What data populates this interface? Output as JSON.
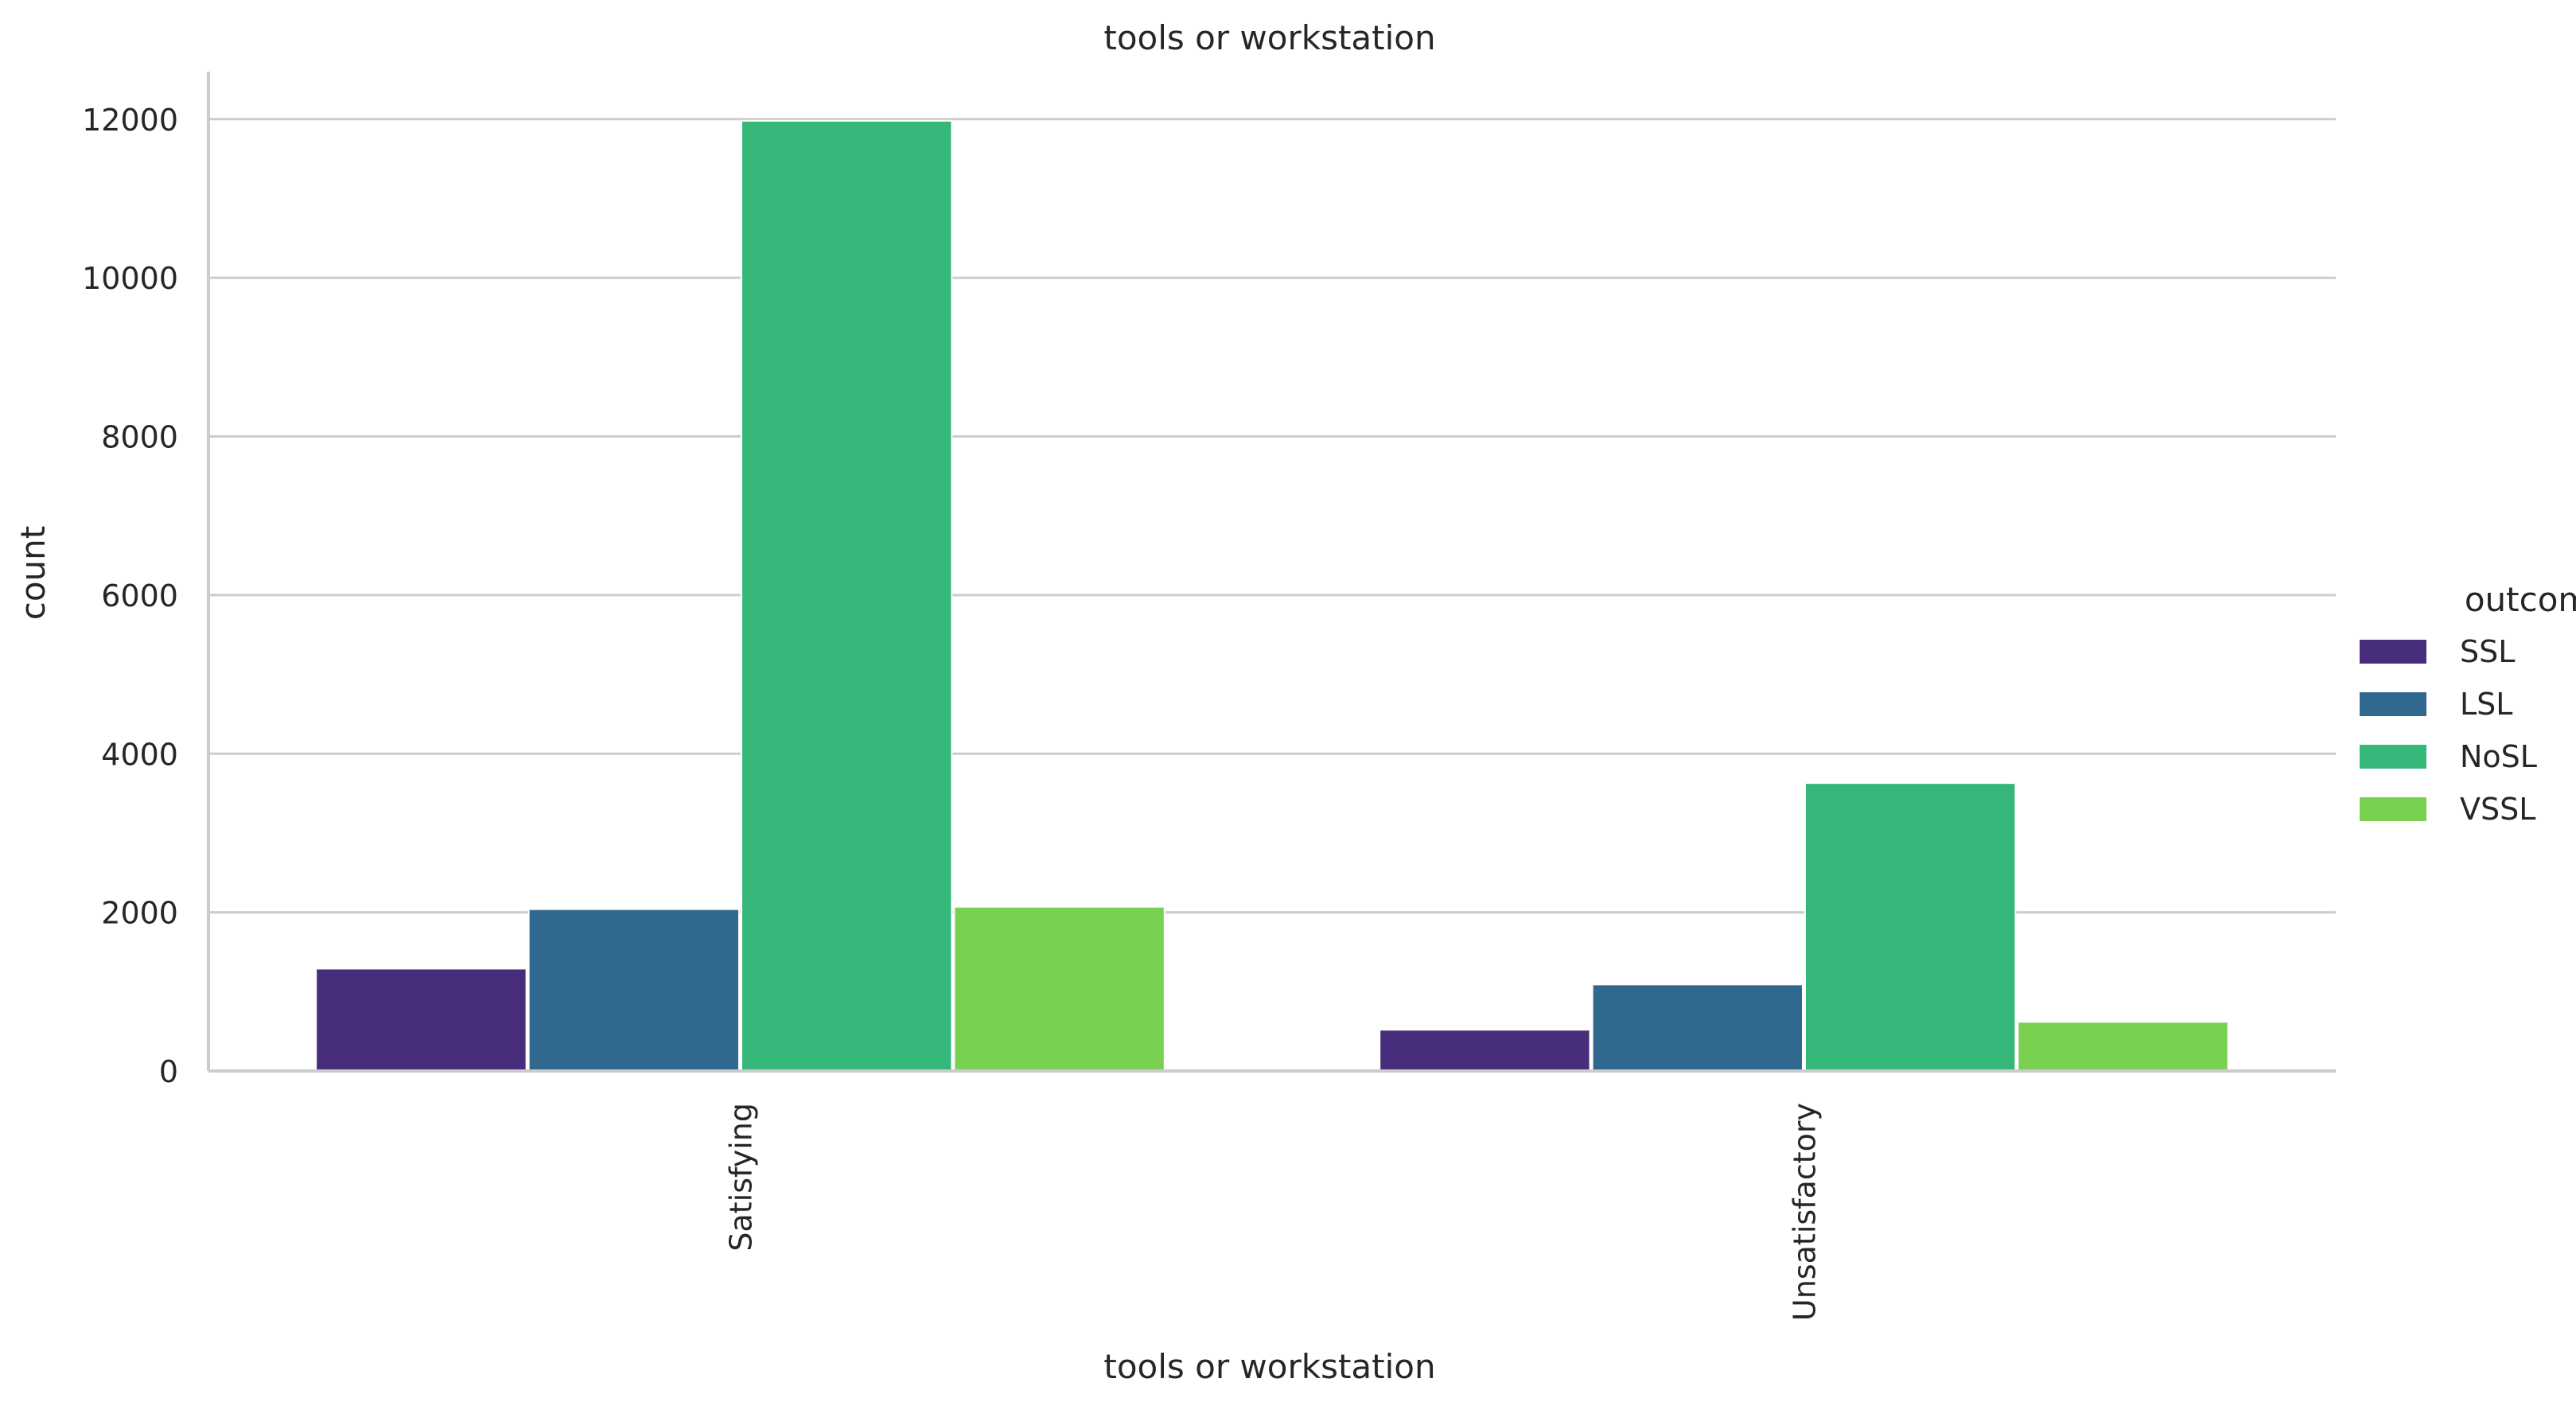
{
  "chart_data": {
    "type": "bar",
    "title": "tools or workstation",
    "xlabel": "tools or workstation",
    "ylabel": "count",
    "categories": [
      "Satisfying",
      "Unsatisfactory"
    ],
    "series": [
      {
        "name": "SSL",
        "color": "#472d7b",
        "values": [
          1290,
          520
        ]
      },
      {
        "name": "LSL",
        "color": "#31688e",
        "values": [
          2040,
          1090
        ]
      },
      {
        "name": "NoSL",
        "color": "#35b779",
        "values": [
          11980,
          3630
        ]
      },
      {
        "name": "VSSL",
        "color": "#7ad151",
        "values": [
          2070,
          620
        ]
      }
    ],
    "ylim": [
      0,
      12600
    ],
    "yticks": [
      0,
      2000,
      4000,
      6000,
      8000,
      10000,
      12000
    ],
    "grid": true,
    "legend": {
      "title": "outcome",
      "placement": "right"
    }
  }
}
